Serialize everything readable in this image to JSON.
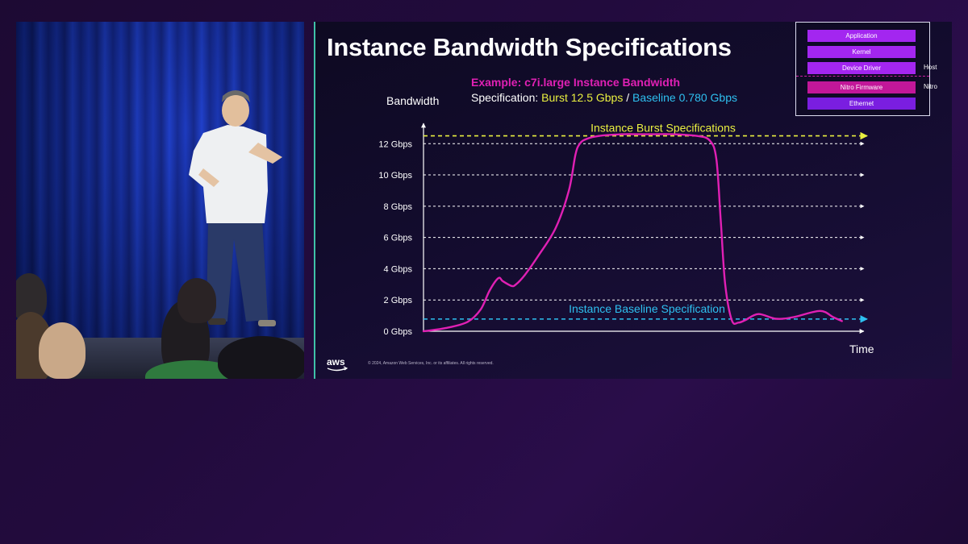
{
  "slide": {
    "title": "Instance Bandwidth Specifications",
    "copyright": "© 2024, Amazon Web Services, Inc. or its affiliates. All rights reserved.",
    "logo_text": "aws"
  },
  "colors": {
    "curve": "#e020b4",
    "burst_line": "#eaf040",
    "baseline_line": "#2ec0f0",
    "grid": "#ffffff",
    "layer_purple": "#a326f0",
    "layer_pink": "#c21799",
    "layer_dark": "#7a1ee0"
  },
  "stack_diagram": {
    "layers": [
      {
        "label": "Application",
        "color": "#a326f0"
      },
      {
        "label": "Kernel",
        "color": "#a326f0"
      },
      {
        "label": "Device Driver",
        "color": "#a326f0"
      },
      {
        "label": "Nitro Firmware",
        "color": "#c21799"
      },
      {
        "label": "Ethernet",
        "color": "#7a1ee0"
      }
    ],
    "side_labels": [
      "Host",
      "Nitro"
    ]
  },
  "chart_data": {
    "type": "line",
    "subtitle_example": "Example:  c7i.large Instance Bandwidth",
    "spec_prefix": "Specification: ",
    "spec_burst": "Burst 12.5 Gbps",
    "spec_sep": " / ",
    "spec_baseline": "Baseline 0.780 Gbps",
    "ylabel": "Bandwidth",
    "xlabel": "Time",
    "y_ticks": [
      0,
      2,
      4,
      6,
      8,
      10,
      12
    ],
    "y_tick_labels": [
      "0 Gbps",
      "2 Gbps",
      "4 Gbps",
      "6 Gbps",
      "8  Gbps",
      "10 Gbps",
      "12 Gbps"
    ],
    "ylim": [
      0,
      13.2
    ],
    "xlim": [
      0,
      100
    ],
    "grid": true,
    "burst": {
      "value": 12.5,
      "label": "Instance Burst Specifications"
    },
    "baseline": {
      "value": 0.78,
      "label": "Instance Baseline Specification"
    },
    "series": [
      {
        "x": [
          0,
          5,
          10,
          13,
          15,
          17,
          18,
          20,
          21,
          23,
          26,
          30,
          33,
          34.5,
          35.5,
          37,
          40,
          45,
          50,
          57,
          62,
          65,
          66.5,
          67.5,
          68.5,
          70,
          71.5,
          73,
          76,
          80,
          84,
          90,
          93,
          95
        ],
        "y": [
          0,
          0.2,
          0.6,
          1.4,
          2.6,
          3.4,
          3.2,
          2.9,
          3.0,
          3.6,
          4.8,
          6.6,
          9.0,
          11.3,
          12.0,
          12.3,
          12.5,
          12.6,
          12.6,
          12.6,
          12.5,
          12.2,
          11.0,
          7.0,
          3.0,
          0.7,
          0.55,
          0.7,
          1.1,
          0.8,
          0.9,
          1.3,
          0.9,
          0.65
        ]
      }
    ]
  }
}
